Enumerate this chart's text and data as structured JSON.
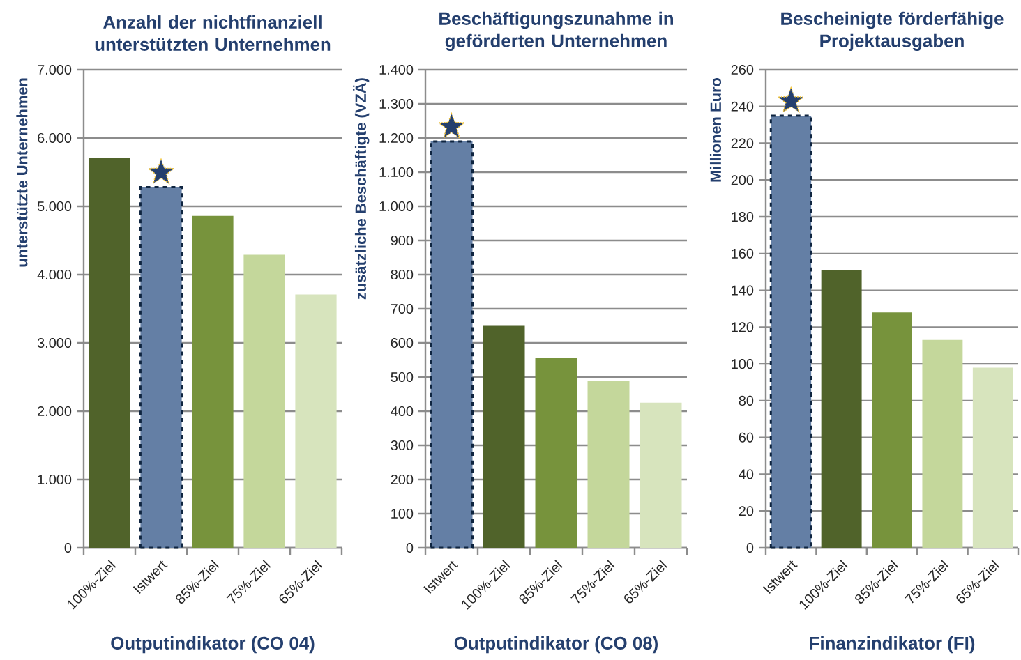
{
  "chart_data": [
    {
      "type": "bar",
      "title": "Anzahl der nichtfinanziell unterstützten Unternehmen",
      "xlabel": "Outputindikator (CO 04)",
      "ylabel": "unterstützte Unternehmen",
      "categories": [
        "100%-Ziel",
        "Istwert",
        "85%-Ziel",
        "75%-Ziel",
        "65%-Ziel"
      ],
      "series": [
        {
          "color": "#647fa5",
          "line_style": "dashed",
          "values": [
            null,
            5280,
            null,
            null,
            null
          ]
        },
        {
          "colors": [
            "#50632a",
            null,
            "#77933c",
            "#c4d79b",
            "#d7e4bd"
          ],
          "values": [
            5710,
            null,
            4860,
            4290,
            3710
          ]
        }
      ],
      "ylim": [
        0,
        7000
      ],
      "yticks": [
        {
          "value": 0,
          "label": "0"
        },
        {
          "value": 1000,
          "label": "1.000"
        },
        {
          "value": 2000,
          "label": "2.000"
        },
        {
          "value": 3000,
          "label": "3.000"
        },
        {
          "value": 4000,
          "label": "4.000"
        },
        {
          "value": 5000,
          "label": "5.000"
        },
        {
          "value": 6000,
          "label": "6.000"
        },
        {
          "value": 7000,
          "label": "7.000"
        }
      ],
      "grid": "y"
    },
    {
      "type": "bar",
      "title": "Beschäftigungszunahme in geförderten Unternehmen",
      "xlabel": "Outputindikator (CO 08)",
      "ylabel": "zusätzliche Beschäftigte (VZÄ)",
      "categories": [
        "Istwert",
        "100%-Ziel",
        "85%-Ziel",
        "75%-Ziel",
        "65%-Ziel"
      ],
      "series": [
        {
          "color": "#647fa5",
          "line_style": "dashed",
          "values": [
            1190,
            null,
            null,
            null,
            null
          ]
        },
        {
          "colors": [
            null,
            "#50632a",
            "#77933c",
            "#c4d79b",
            "#d7e4bd"
          ],
          "values": [
            null,
            650,
            555,
            490,
            425
          ]
        }
      ],
      "ylim": [
        0,
        1400
      ],
      "yticks": [
        0,
        100,
        200,
        300,
        400,
        500,
        600,
        700,
        800,
        900,
        {
          "value": 1000,
          "label": "1.000"
        },
        {
          "value": 1100,
          "label": "1.100"
        },
        {
          "value": 1200,
          "label": "1.200"
        },
        {
          "value": 1300,
          "label": "1.300"
        },
        {
          "value": 1400,
          "label": "1.400"
        }
      ],
      "grid": "y"
    },
    {
      "type": "bar",
      "title": "Bescheinigte förderfähige Projektausgaben",
      "xlabel": "Finanzindikator (FI)",
      "ylabel": "Millionen Euro",
      "categories": [
        "Istwert",
        "100%-Ziel",
        "85%-Ziel",
        "75%-Ziel",
        "65%-Ziel"
      ],
      "series": [
        {
          "color": "#647fa5",
          "line_style": "dashed",
          "values": [
            235,
            null,
            null,
            null,
            null
          ]
        },
        {
          "colors": [
            null,
            "#50632a",
            "#77933c",
            "#c4d79b",
            "#d7e4bd"
          ],
          "values": [
            null,
            151,
            128,
            113,
            98
          ]
        }
      ],
      "ylim": [
        0,
        260
      ],
      "yticks": [
        0,
        20,
        40,
        60,
        80,
        100,
        120,
        140,
        160,
        180,
        200,
        220,
        240,
        260
      ],
      "grid": "y"
    }
  ]
}
